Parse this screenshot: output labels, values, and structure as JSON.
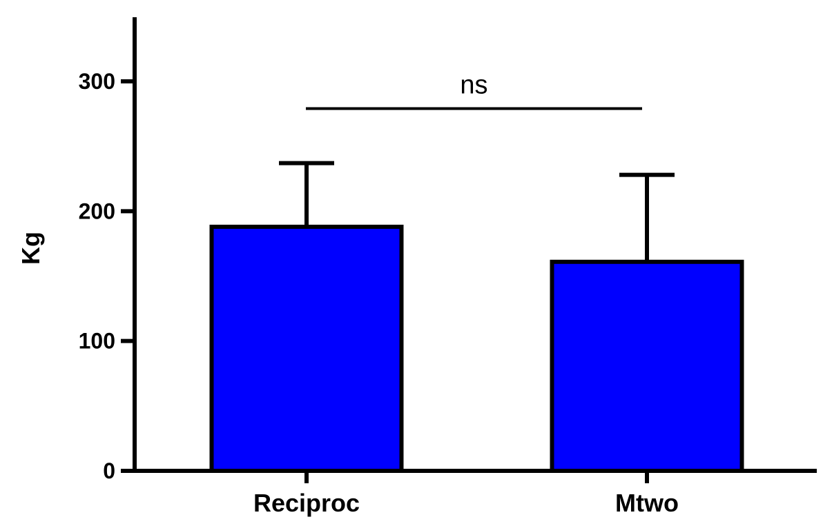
{
  "chart_data": {
    "type": "bar",
    "title": "",
    "xlabel": "",
    "ylabel": "Kg",
    "ylim": [
      0,
      350
    ],
    "yticks": [
      0,
      100,
      200,
      300
    ],
    "grid": false,
    "legend": "none",
    "categories": [
      "Reciproc",
      "Mtwo"
    ],
    "values": [
      188,
      161
    ],
    "error_upper": [
      237,
      228
    ],
    "bar_color": "#0000ff",
    "edge_color": "#000000",
    "annotations": [
      {
        "text": "ns",
        "type": "significance-bracket",
        "between": [
          "Reciproc",
          "Mtwo"
        ],
        "y": 279
      }
    ]
  }
}
